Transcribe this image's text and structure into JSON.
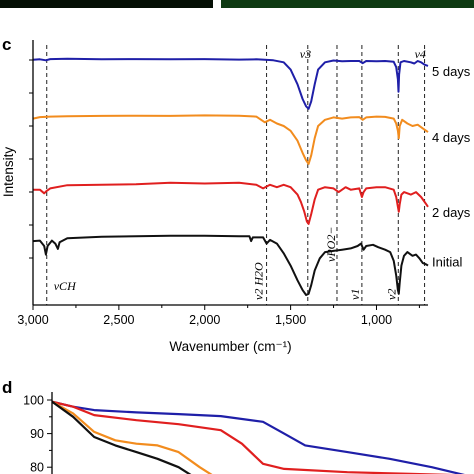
{
  "panels": {
    "c_label": "c",
    "d_label": "d"
  },
  "chart_data": [
    {
      "type": "line",
      "panel": "c",
      "xlabel": "Wavenumber (cm⁻¹)",
      "ylabel": "Intensity",
      "xlim": [
        3000,
        700
      ],
      "x_ticks": [
        3000,
        2500,
        2000,
        1500,
        1000
      ],
      "x_tick_labels": [
        "3,000",
        "2,500",
        "2,000",
        "1,500",
        "1,000"
      ],
      "grid": false,
      "series": [
        {
          "name": "5 days",
          "color": "#1f1fa8",
          "baseline": 0.96,
          "points": [
            [
              3000,
              0.96
            ],
            [
              2960,
              0.962
            ],
            [
              2925,
              0.958
            ],
            [
              2900,
              0.963
            ],
            [
              2800,
              0.964
            ],
            [
              2600,
              0.962
            ],
            [
              2400,
              0.963
            ],
            [
              2200,
              0.962
            ],
            [
              2000,
              0.963
            ],
            [
              1800,
              0.961
            ],
            [
              1700,
              0.962
            ],
            [
              1600,
              0.958
            ],
            [
              1540,
              0.95
            ],
            [
              1500,
              0.92
            ],
            [
              1460,
              0.86
            ],
            [
              1430,
              0.8
            ],
            [
              1410,
              0.77
            ],
            [
              1395,
              0.76
            ],
            [
              1380,
              0.79
            ],
            [
              1360,
              0.86
            ],
            [
              1340,
              0.92
            ],
            [
              1300,
              0.95
            ],
            [
              1250,
              0.957
            ],
            [
              1200,
              0.954
            ],
            [
              1150,
              0.955
            ],
            [
              1100,
              0.955
            ],
            [
              1080,
              0.946
            ],
            [
              1060,
              0.955
            ],
            [
              1000,
              0.954
            ],
            [
              950,
              0.955
            ],
            [
              900,
              0.952
            ],
            [
              885,
              0.93
            ],
            [
              875,
              0.88
            ],
            [
              872,
              0.83
            ],
            [
              868,
              0.9
            ],
            [
              860,
              0.95
            ],
            [
              840,
              0.955
            ],
            [
              800,
              0.95
            ],
            [
              780,
              0.945
            ],
            [
              760,
              0.955
            ],
            [
              740,
              0.95
            ],
            [
              720,
              0.94
            ],
            [
              700,
              0.935
            ]
          ]
        },
        {
          "name": "4 days",
          "color": "#f28c1e",
          "baseline": 0.72,
          "points": [
            [
              3000,
              0.72
            ],
            [
              2960,
              0.726
            ],
            [
              2900,
              0.728
            ],
            [
              2800,
              0.73
            ],
            [
              2600,
              0.731
            ],
            [
              2400,
              0.732
            ],
            [
              2200,
              0.731
            ],
            [
              2000,
              0.733
            ],
            [
              1800,
              0.732
            ],
            [
              1700,
              0.728
            ],
            [
              1650,
              0.705
            ],
            [
              1620,
              0.715
            ],
            [
              1580,
              0.7
            ],
            [
              1540,
              0.69
            ],
            [
              1500,
              0.67
            ],
            [
              1460,
              0.63
            ],
            [
              1430,
              0.58
            ],
            [
              1410,
              0.55
            ],
            [
              1395,
              0.535
            ],
            [
              1380,
              0.57
            ],
            [
              1360,
              0.64
            ],
            [
              1340,
              0.69
            ],
            [
              1300,
              0.715
            ],
            [
              1250,
              0.725
            ],
            [
              1200,
              0.72
            ],
            [
              1150,
              0.725
            ],
            [
              1100,
              0.726
            ],
            [
              1080,
              0.715
            ],
            [
              1060,
              0.725
            ],
            [
              1000,
              0.728
            ],
            [
              950,
              0.727
            ],
            [
              900,
              0.72
            ],
            [
              885,
              0.7
            ],
            [
              875,
              0.67
            ],
            [
              870,
              0.64
            ],
            [
              865,
              0.69
            ],
            [
              850,
              0.715
            ],
            [
              820,
              0.7
            ],
            [
              790,
              0.69
            ],
            [
              760,
              0.695
            ],
            [
              730,
              0.68
            ],
            [
              700,
              0.665
            ]
          ]
        },
        {
          "name": "2 days",
          "color": "#e01f1f",
          "baseline": 0.43,
          "points": [
            [
              3000,
              0.43
            ],
            [
              2960,
              0.43
            ],
            [
              2935,
              0.415
            ],
            [
              2920,
              0.425
            ],
            [
              2900,
              0.435
            ],
            [
              2800,
              0.448
            ],
            [
              2600,
              0.45
            ],
            [
              2400,
              0.452
            ],
            [
              2200,
              0.458
            ],
            [
              2000,
              0.455
            ],
            [
              1800,
              0.458
            ],
            [
              1700,
              0.45
            ],
            [
              1660,
              0.435
            ],
            [
              1620,
              0.45
            ],
            [
              1580,
              0.44
            ],
            [
              1540,
              0.45
            ],
            [
              1500,
              0.44
            ],
            [
              1460,
              0.41
            ],
            [
              1440,
              0.38
            ],
            [
              1420,
              0.34
            ],
            [
              1405,
              0.3
            ],
            [
              1395,
              0.29
            ],
            [
              1380,
              0.33
            ],
            [
              1360,
              0.39
            ],
            [
              1340,
              0.43
            ],
            [
              1300,
              0.44
            ],
            [
              1250,
              0.435
            ],
            [
              1220,
              0.42
            ],
            [
              1180,
              0.44
            ],
            [
              1150,
              0.43
            ],
            [
              1100,
              0.435
            ],
            [
              1085,
              0.4
            ],
            [
              1075,
              0.42
            ],
            [
              1060,
              0.435
            ],
            [
              1000,
              0.44
            ],
            [
              950,
              0.44
            ],
            [
              900,
              0.43
            ],
            [
              885,
              0.4
            ],
            [
              875,
              0.36
            ],
            [
              870,
              0.34
            ],
            [
              865,
              0.37
            ],
            [
              855,
              0.41
            ],
            [
              840,
              0.42
            ],
            [
              800,
              0.41
            ],
            [
              770,
              0.42
            ],
            [
              740,
              0.4
            ],
            [
              710,
              0.37
            ],
            [
              700,
              0.36
            ]
          ]
        },
        {
          "name": "Initial",
          "color": "#111111",
          "baseline": 0.22,
          "points": [
            [
              3000,
              0.22
            ],
            [
              2960,
              0.222
            ],
            [
              2935,
              0.2
            ],
            [
              2925,
              0.165
            ],
            [
              2915,
              0.2
            ],
            [
              2890,
              0.222
            ],
            [
              2870,
              0.21
            ],
            [
              2855,
              0.188
            ],
            [
              2845,
              0.215
            ],
            [
              2800,
              0.232
            ],
            [
              2600,
              0.238
            ],
            [
              2400,
              0.24
            ],
            [
              2200,
              0.242
            ],
            [
              2000,
              0.242
            ],
            [
              1800,
              0.24
            ],
            [
              1740,
              0.24
            ],
            [
              1730,
              0.22
            ],
            [
              1720,
              0.235
            ],
            [
              1660,
              0.235
            ],
            [
              1640,
              0.21
            ],
            [
              1620,
              0.225
            ],
            [
              1580,
              0.21
            ],
            [
              1540,
              0.17
            ],
            [
              1500,
              0.12
            ],
            [
              1460,
              0.06
            ],
            [
              1430,
              0.02
            ],
            [
              1410,
              0.0
            ],
            [
              1395,
              0.005
            ],
            [
              1380,
              0.04
            ],
            [
              1360,
              0.1
            ],
            [
              1330,
              0.15
            ],
            [
              1300,
              0.175
            ],
            [
              1250,
              0.18
            ],
            [
              1200,
              0.185
            ],
            [
              1150,
              0.19
            ],
            [
              1110,
              0.2
            ],
            [
              1090,
              0.21
            ],
            [
              1075,
              0.185
            ],
            [
              1060,
              0.2
            ],
            [
              1020,
              0.205
            ],
            [
              990,
              0.195
            ],
            [
              950,
              0.185
            ],
            [
              920,
              0.175
            ],
            [
              900,
              0.14
            ],
            [
              885,
              0.08
            ],
            [
              875,
              0.02
            ],
            [
              870,
              0.005
            ],
            [
              865,
              0.05
            ],
            [
              855,
              0.12
            ],
            [
              840,
              0.16
            ],
            [
              820,
              0.175
            ],
            [
              790,
              0.16
            ],
            [
              770,
              0.165
            ],
            [
              750,
              0.15
            ],
            [
              730,
              0.13
            ],
            [
              710,
              0.125
            ],
            [
              700,
              0.12
            ]
          ]
        }
      ],
      "band_lines": [
        {
          "x": 2920,
          "label": "νCH"
        },
        {
          "x": 1640,
          "label": "ν2 H2O"
        },
        {
          "x": 1400,
          "label": "ν3"
        },
        {
          "x": 1230,
          "label": "νPO2−"
        },
        {
          "x": 1085,
          "label": "ν1"
        },
        {
          "x": 873,
          "label": "ν2"
        },
        {
          "x": 720,
          "label": "ν4"
        }
      ]
    },
    {
      "type": "line",
      "panel": "d",
      "y_ticks": [
        100,
        90,
        80
      ],
      "ylim_visible": [
        75,
        100
      ],
      "x_fraction_range": [
        0,
        1
      ],
      "series": [
        {
          "name": "",
          "color": "#1f1fa8",
          "points": [
            [
              0,
              99.5
            ],
            [
              0.05,
              98
            ],
            [
              0.1,
              97
            ],
            [
              0.2,
              96.3
            ],
            [
              0.3,
              95.8
            ],
            [
              0.4,
              95.2
            ],
            [
              0.5,
              93.5
            ],
            [
              0.55,
              90
            ],
            [
              0.6,
              86.5
            ],
            [
              0.7,
              84.5
            ],
            [
              0.8,
              82.5
            ],
            [
              0.9,
              80
            ],
            [
              1.0,
              77
            ]
          ]
        },
        {
          "name": "",
          "color": "#e01f1f",
          "points": [
            [
              0,
              99.5
            ],
            [
              0.05,
              98
            ],
            [
              0.1,
              95.5
            ],
            [
              0.2,
              94
            ],
            [
              0.3,
              92.8
            ],
            [
              0.4,
              91
            ],
            [
              0.45,
              87
            ],
            [
              0.5,
              81
            ],
            [
              0.55,
              79.5
            ],
            [
              0.7,
              78.5
            ],
            [
              0.85,
              78
            ],
            [
              1.0,
              77.5
            ]
          ]
        },
        {
          "name": "",
          "color": "#f28c1e",
          "points": [
            [
              0,
              99.5
            ],
            [
              0.05,
              96
            ],
            [
              0.1,
              90.5
            ],
            [
              0.15,
              88
            ],
            [
              0.2,
              87
            ],
            [
              0.25,
              86.5
            ],
            [
              0.3,
              84.5
            ],
            [
              0.35,
              80
            ],
            [
              0.4,
              76
            ],
            [
              0.42,
              74
            ]
          ]
        },
        {
          "name": "",
          "color": "#111111",
          "points": [
            [
              0,
              99.5
            ],
            [
              0.05,
              95
            ],
            [
              0.1,
              89
            ],
            [
              0.15,
              86.5
            ],
            [
              0.2,
              84.5
            ],
            [
              0.25,
              82.5
            ],
            [
              0.3,
              80
            ],
            [
              0.35,
              76
            ],
            [
              0.38,
              73
            ]
          ]
        }
      ]
    }
  ]
}
